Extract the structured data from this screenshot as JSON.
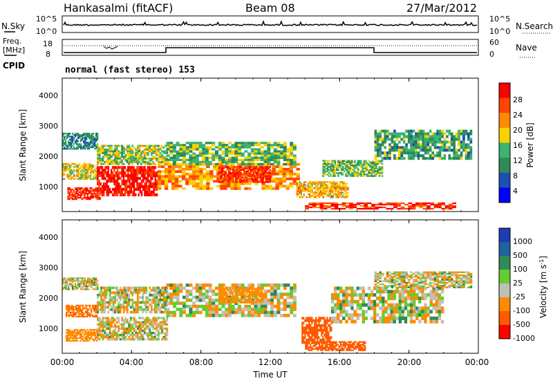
{
  "header": {
    "station": "Hankasalmi (fitACF)",
    "beam": "Beam 08",
    "date": "27/Mar/2012"
  },
  "noise_panel": {
    "left_label": "N.Sky",
    "left_ticks": [
      "10^5",
      "10^0"
    ],
    "right_ticks": [
      "10^5",
      "10^0"
    ],
    "right_label": "N.Search"
  },
  "freq_panel": {
    "left_label_1": "Freq.",
    "left_label_2": "[MHz]",
    "left_ticks": [
      "18",
      "8"
    ],
    "right_ticks": [
      "60",
      "0"
    ],
    "right_label": "Nave"
  },
  "cpid": {
    "label": "CPID",
    "mode": "normal (fast stereo) 153"
  },
  "x_axis": {
    "ticks": [
      "00:00",
      "04:00",
      "08:00",
      "12:00",
      "16:00",
      "20:00",
      "00:00"
    ],
    "label": "Time UT"
  },
  "power_panel": {
    "ylabel": "Slant Range [km]",
    "yticks": [
      "4000",
      "3000",
      "2000",
      "1000"
    ],
    "colorbar_label": "Power [dB]",
    "colorbar_ticks": [
      "28",
      "24",
      "20",
      "16",
      "12",
      "8",
      "4"
    ],
    "colors": [
      "#ff0000",
      "#ff4500",
      "#ff8c00",
      "#ffd000",
      "#3cb371",
      "#2e8b57",
      "#1e50b4",
      "#0000ff"
    ]
  },
  "velocity_panel": {
    "ylabel": "Slant Range [km]",
    "yticks": [
      "4000",
      "3000",
      "2000",
      "1000"
    ],
    "colorbar_label": "Velocity [m s^-1]",
    "colorbar_ticks": [
      "1000",
      "500",
      "100",
      "25",
      "-25",
      "-100",
      "-500",
      "-1000"
    ],
    "colors": [
      "#1e3cb4",
      "#1e64a0",
      "#2e8b57",
      "#66cc33",
      "#c0c0b8",
      "#ff8c00",
      "#ff5a00",
      "#ff0000"
    ]
  },
  "chart_data": {
    "type": "heatmap",
    "x_unit": "hours UT",
    "x_range": [
      0,
      24
    ],
    "y_range": [
      200,
      4600
    ],
    "y_unit": "km",
    "power_regions": [
      {
        "t0": 0.0,
        "t1": 2.0,
        "r0": 2300,
        "r1": 2800,
        "power": 8
      },
      {
        "t0": 0.0,
        "t1": 2.0,
        "r0": 1300,
        "r1": 1800,
        "power": 16
      },
      {
        "t0": 0.3,
        "t1": 2.2,
        "r0": 600,
        "r1": 1000,
        "power": 26
      },
      {
        "t0": 2.0,
        "t1": 5.5,
        "r0": 800,
        "r1": 1700,
        "power": 28
      },
      {
        "t0": 2.0,
        "t1": 6.0,
        "r0": 1800,
        "r1": 2400,
        "power": 14
      },
      {
        "t0": 5.5,
        "t1": 13.5,
        "r0": 1000,
        "r1": 1800,
        "power": 20
      },
      {
        "t0": 6.0,
        "t1": 13.5,
        "r0": 1800,
        "r1": 2500,
        "power": 12
      },
      {
        "t0": 9.0,
        "t1": 12.0,
        "r0": 1200,
        "r1": 1700,
        "power": 26
      },
      {
        "t0": 13.5,
        "t1": 16.5,
        "r0": 700,
        "r1": 1200,
        "power": 18
      },
      {
        "t0": 14.0,
        "t1": 22.5,
        "r0": 300,
        "r1": 500,
        "power": 26
      },
      {
        "t0": 15.0,
        "t1": 18.5,
        "r0": 1400,
        "r1": 1900,
        "power": 12
      },
      {
        "t0": 18.0,
        "t1": 23.5,
        "r0": 2000,
        "r1": 2900,
        "power": 10
      }
    ],
    "velocity_regions": [
      {
        "t0": 0.0,
        "t1": 2.0,
        "r0": 2300,
        "r1": 2700,
        "velocity": 0
      },
      {
        "t0": 0.2,
        "t1": 2.0,
        "r0": 1400,
        "r1": 1800,
        "velocity": -300
      },
      {
        "t0": 0.2,
        "t1": 2.0,
        "r0": 600,
        "r1": 1000,
        "velocity": -200
      },
      {
        "t0": 2.0,
        "t1": 6.0,
        "r0": 1600,
        "r1": 2400,
        "velocity": 0
      },
      {
        "t0": 2.0,
        "t1": 6.0,
        "r0": 700,
        "r1": 1400,
        "velocity": 0
      },
      {
        "t0": 6.0,
        "t1": 13.5,
        "r0": 1500,
        "r1": 2500,
        "velocity": 0
      },
      {
        "t0": 9.0,
        "t1": 11.5,
        "r0": 1900,
        "r1": 2400,
        "velocity": -200
      },
      {
        "t0": 13.8,
        "t1": 15.5,
        "r0": 600,
        "r1": 1400,
        "velocity": -600
      },
      {
        "t0": 14.0,
        "t1": 17.5,
        "r0": 300,
        "r1": 600,
        "velocity": -400
      },
      {
        "t0": 15.5,
        "t1": 22.0,
        "r0": 1300,
        "r1": 2400,
        "velocity": 0
      },
      {
        "t0": 18.0,
        "t1": 23.5,
        "r0": 2400,
        "r1": 2900,
        "velocity": 0
      }
    ]
  }
}
